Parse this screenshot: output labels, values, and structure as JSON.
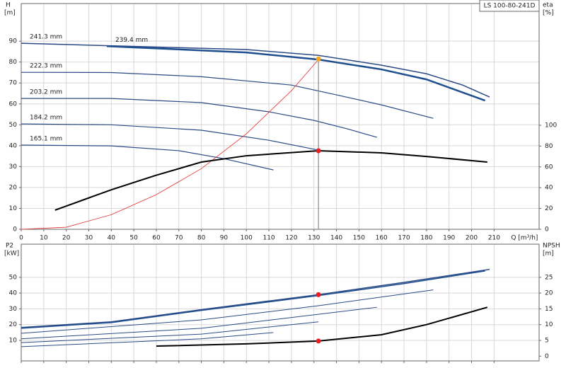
{
  "chart_data": [
    {
      "type": "line",
      "title": "LS 100-80-241D",
      "ylabel": "H",
      "yunit": "[m]",
      "y2label": "eta",
      "y2unit": "[%]",
      "xlabel": "Q [m³/h]",
      "xlim": [
        0,
        230
      ],
      "xticks": [
        0,
        10,
        20,
        30,
        40,
        50,
        60,
        70,
        80,
        90,
        100,
        110,
        120,
        130,
        140,
        150,
        160,
        170,
        180,
        190,
        200,
        210
      ],
      "xtick_labels": true,
      "ylim": [
        0,
        108
      ],
      "yticks": [
        0,
        10,
        20,
        30,
        40,
        50,
        60,
        70,
        80,
        90
      ],
      "y2lim": [
        0,
        217
      ],
      "y2ticks": [
        0,
        20,
        40,
        60,
        80,
        100
      ],
      "grid": true,
      "series": [
        {
          "name": "241.3 mm",
          "color": "#2b4a86",
          "width": 1.5,
          "x": [
            0,
            100,
            132,
            160,
            180,
            196,
            208
          ],
          "values": [
            89,
            86,
            83.2,
            78.5,
            74.4,
            69,
            63.3
          ]
        },
        {
          "name": "239.4 mm",
          "color": "#1f4f8f",
          "width": 2.5,
          "x": [
            38,
            100,
            132,
            160,
            180,
            206
          ],
          "values": [
            87.6,
            84.6,
            81.2,
            76.5,
            71.7,
            61.6
          ]
        },
        {
          "name": "222.3 mm",
          "color": "#2b4a86",
          "width": 1.2,
          "x": [
            0,
            40,
            80,
            120,
            140,
            160,
            183
          ],
          "values": [
            75.1,
            75,
            73,
            69,
            64.3,
            59.5,
            53.1
          ]
        },
        {
          "name": "203.2 mm",
          "color": "#2b4a86",
          "width": 1.2,
          "x": [
            0,
            40,
            80,
            110,
            130,
            145,
            158
          ],
          "values": [
            62.6,
            62.6,
            60.6,
            56.2,
            52.1,
            48,
            44
          ]
        },
        {
          "name": "184.2 mm",
          "color": "#2b4a86",
          "width": 1.2,
          "x": [
            0,
            40,
            80,
            110,
            132
          ],
          "values": [
            50.4,
            50,
            47.4,
            42.6,
            37.9
          ]
        },
        {
          "name": "165.1 mm",
          "color": "#2b4a86",
          "width": 1.2,
          "x": [
            0,
            40,
            70,
            90,
            112
          ],
          "values": [
            40.3,
            39.9,
            37.6,
            33.8,
            28.4
          ]
        },
        {
          "color": "#e83030",
          "width": 0.8,
          "x": [
            0,
            20,
            40,
            60,
            80,
            100,
            120,
            132
          ],
          "values": [
            0,
            1,
            7,
            16.6,
            29,
            45.7,
            66.3,
            81.2
          ]
        },
        {
          "color": "#000000",
          "width": 2,
          "axis": "y2",
          "x": [
            15,
            40,
            60,
            80,
            100,
            132,
            160,
            180,
            207
          ],
          "values": [
            18.4,
            38,
            52,
            64.6,
            70.7,
            75.5,
            73.5,
            70,
            64.6
          ]
        }
      ],
      "points": [
        {
          "x": 132,
          "y": 81.5,
          "color": "#f5a623"
        },
        {
          "x": 132,
          "y": 75.5,
          "axis": "y2",
          "color": "#e82020"
        }
      ]
    },
    {
      "type": "line",
      "ylabel": "P2",
      "yunit": "[kW]",
      "y2label": "NPSH",
      "y2unit": "[m]",
      "xlim": [
        0,
        230
      ],
      "xticks": [
        0,
        10,
        20,
        30,
        40,
        50,
        60,
        70,
        80,
        90,
        100,
        110,
        120,
        130,
        140,
        150,
        160,
        170,
        180,
        190,
        200,
        210
      ],
      "xtick_labels": false,
      "ylim": [
        -3,
        71
      ],
      "yticks": [
        10,
        20,
        30,
        40,
        50
      ],
      "y2lim": [
        -1.5,
        35.5
      ],
      "y2ticks": [
        0,
        5,
        10,
        15,
        20,
        25
      ],
      "grid": true,
      "series": [
        {
          "color": "#2b4a86",
          "width": 1.5,
          "x": [
            0,
            40,
            80,
            132,
            170,
            208
          ],
          "values": [
            18.2,
            21.8,
            29.5,
            39,
            46.8,
            55
          ]
        },
        {
          "color": "#1f4f8f",
          "width": 1.5,
          "x": [
            0,
            40,
            80,
            132,
            170,
            206
          ],
          "values": [
            17.7,
            21.3,
            29,
            38.4,
            46,
            54
          ]
        },
        {
          "color": "#2b4a86",
          "width": 1,
          "x": [
            0,
            80,
            132,
            183
          ],
          "values": [
            14.5,
            23,
            32,
            42
          ]
        },
        {
          "color": "#2b4a86",
          "width": 1,
          "x": [
            0,
            80,
            158
          ],
          "values": [
            11,
            17.7,
            31
          ]
        },
        {
          "color": "#2b4a86",
          "width": 1,
          "x": [
            0,
            80,
            132
          ],
          "values": [
            8.6,
            14,
            21.8
          ]
        },
        {
          "color": "#2b4a86",
          "width": 1,
          "x": [
            0,
            80,
            112
          ],
          "values": [
            6,
            11,
            15
          ]
        },
        {
          "color": "#000000",
          "width": 2,
          "axis": "y2",
          "x": [
            60,
            100,
            132,
            160,
            180,
            207
          ],
          "values": [
            3.2,
            3.9,
            4.8,
            6.8,
            10,
            15.5
          ]
        }
      ],
      "points": [
        {
          "x": 132,
          "y": 39,
          "color": "#e82020"
        },
        {
          "x": 132,
          "y": 4.8,
          "axis": "y2",
          "color": "#e82020"
        }
      ]
    }
  ]
}
